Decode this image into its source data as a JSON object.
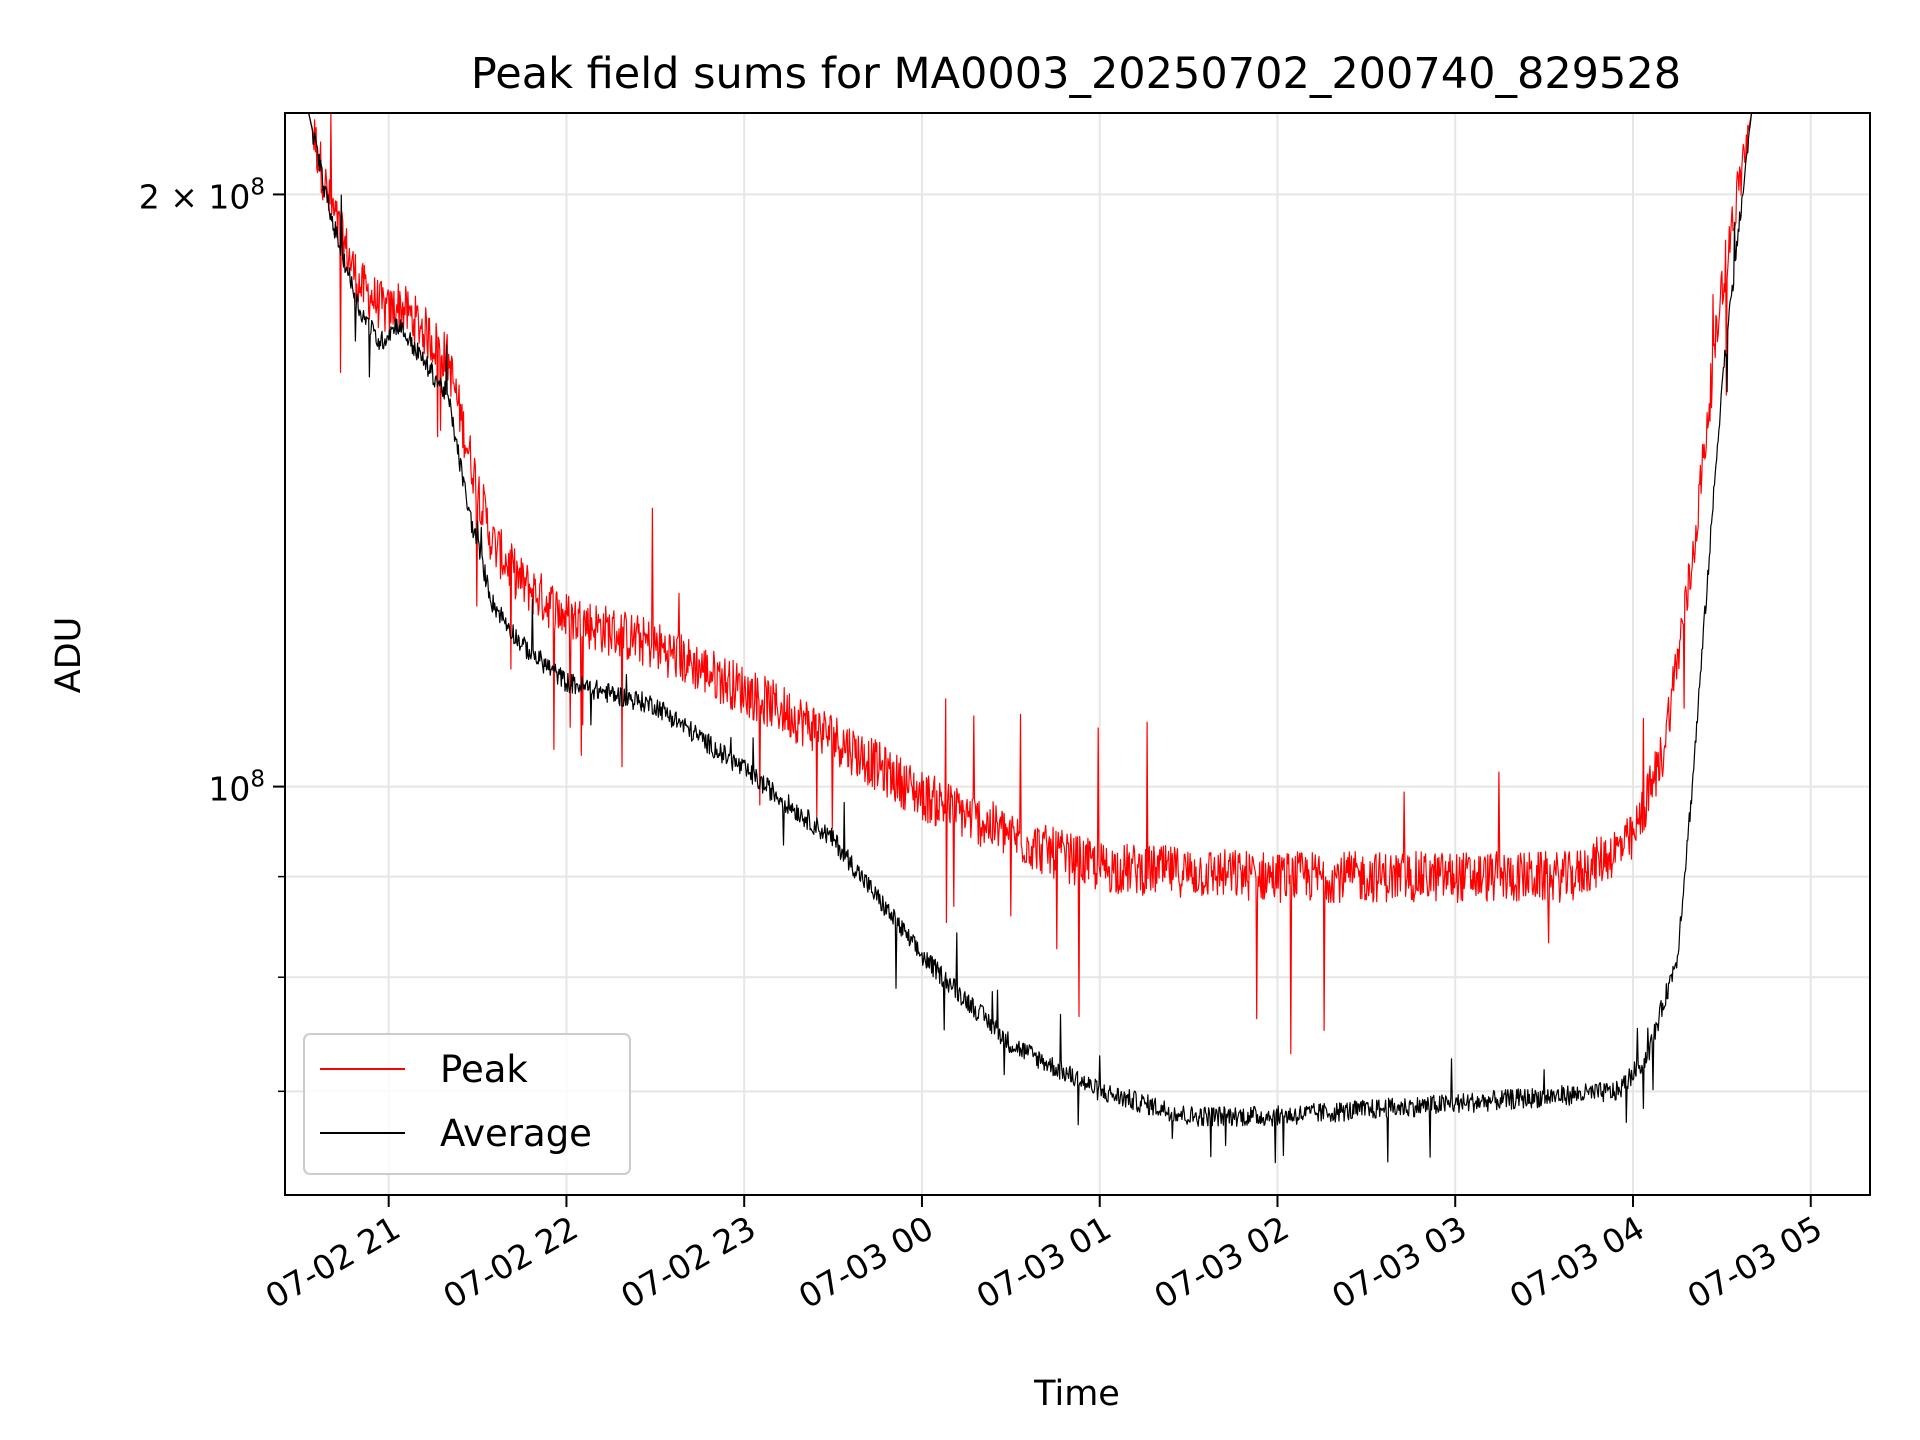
{
  "chart_data": {
    "type": "line",
    "title": "Peak field sums for MA0003_20250702_200740_829528",
    "xlabel": "Time",
    "ylabel": "ADU",
    "yscale": "log",
    "grid": true,
    "legend_position": "lower-left",
    "xlim": [
      "2025-07-02 20:25",
      "2025-07-03 05:20"
    ],
    "ylim": [
      62000000,
      220000000
    ],
    "x_ticks": [
      {
        "value": "2025-07-02 21:00",
        "label": "07-02 21"
      },
      {
        "value": "2025-07-02 22:00",
        "label": "07-02 22"
      },
      {
        "value": "2025-07-02 23:00",
        "label": "07-02 23"
      },
      {
        "value": "2025-07-03 00:00",
        "label": "07-03 00"
      },
      {
        "value": "2025-07-03 01:00",
        "label": "07-03 01"
      },
      {
        "value": "2025-07-03 02:00",
        "label": "07-03 02"
      },
      {
        "value": "2025-07-03 03:00",
        "label": "07-03 03"
      },
      {
        "value": "2025-07-03 04:00",
        "label": "07-03 04"
      },
      {
        "value": "2025-07-03 05:00",
        "label": "07-03 05"
      }
    ],
    "y_ticks_major": [
      {
        "value": 100000000,
        "base": "10",
        "exp": "8",
        "coef": ""
      },
      {
        "value": 200000000,
        "base": "10",
        "exp": "8",
        "coef": "2 × "
      }
    ],
    "y_ticks_minor": [
      70000000,
      80000000,
      90000000
    ],
    "series": [
      {
        "name": "Peak",
        "color": "#ff0000",
        "noise_pct": 5,
        "x": [
          "2025-07-02 20:25",
          "2025-07-02 20:33",
          "2025-07-02 20:40",
          "2025-07-02 20:50",
          "2025-07-02 21:00",
          "2025-07-02 21:03",
          "2025-07-02 21:10",
          "2025-07-02 21:20",
          "2025-07-02 21:27",
          "2025-07-02 21:35",
          "2025-07-02 21:45",
          "2025-07-02 22:00",
          "2025-07-02 22:30",
          "2025-07-02 23:00",
          "2025-07-02 23:30",
          "2025-07-03 00:00",
          "2025-07-03 00:20",
          "2025-07-03 00:40",
          "2025-07-03 01:00",
          "2025-07-03 02:00",
          "2025-07-03 03:00",
          "2025-07-03 03:40",
          "2025-07-03 04:00",
          "2025-07-03 04:10",
          "2025-07-03 04:20",
          "2025-07-03 04:30",
          "2025-07-03 04:40",
          "2025-07-03 05:20"
        ],
        "values": [
          220000000,
          220000000,
          198000000,
          180000000,
          174000000,
          176000000,
          172000000,
          165000000,
          148000000,
          133000000,
          127000000,
          122000000,
          118000000,
          112000000,
          106000000,
          99000000,
          96000000,
          93000000,
          91000000,
          90000000,
          90000000,
          90000000,
          94000000,
          104000000,
          130000000,
          180000000,
          220000000,
          220000000
        ]
      },
      {
        "name": "Average",
        "color": "#000000",
        "noise_pct": 2,
        "x": [
          "2025-07-02 20:25",
          "2025-07-02 20:33",
          "2025-07-02 20:40",
          "2025-07-02 20:50",
          "2025-07-02 20:57",
          "2025-07-02 21:03",
          "2025-07-02 21:10",
          "2025-07-02 21:20",
          "2025-07-02 21:27",
          "2025-07-02 21:35",
          "2025-07-02 21:45",
          "2025-07-02 22:00",
          "2025-07-02 22:30",
          "2025-07-02 23:00",
          "2025-07-02 23:30",
          "2025-07-03 00:00",
          "2025-07-03 00:30",
          "2025-07-03 01:00",
          "2025-07-03 01:30",
          "2025-07-03 02:00",
          "2025-07-03 03:00",
          "2025-07-03 03:55",
          "2025-07-03 04:05",
          "2025-07-03 04:15",
          "2025-07-03 04:20",
          "2025-07-03 04:30",
          "2025-07-03 04:40",
          "2025-07-03 05:20"
        ],
        "values": [
          220000000,
          220000000,
          196000000,
          175000000,
          168000000,
          172000000,
          166000000,
          158000000,
          138000000,
          124000000,
          118000000,
          113000000,
          110000000,
          102000000,
          94000000,
          82000000,
          74000000,
          70000000,
          68000000,
          68000000,
          69000000,
          70000000,
          73000000,
          82000000,
          100000000,
          160000000,
          220000000,
          220000000
        ]
      }
    ]
  }
}
